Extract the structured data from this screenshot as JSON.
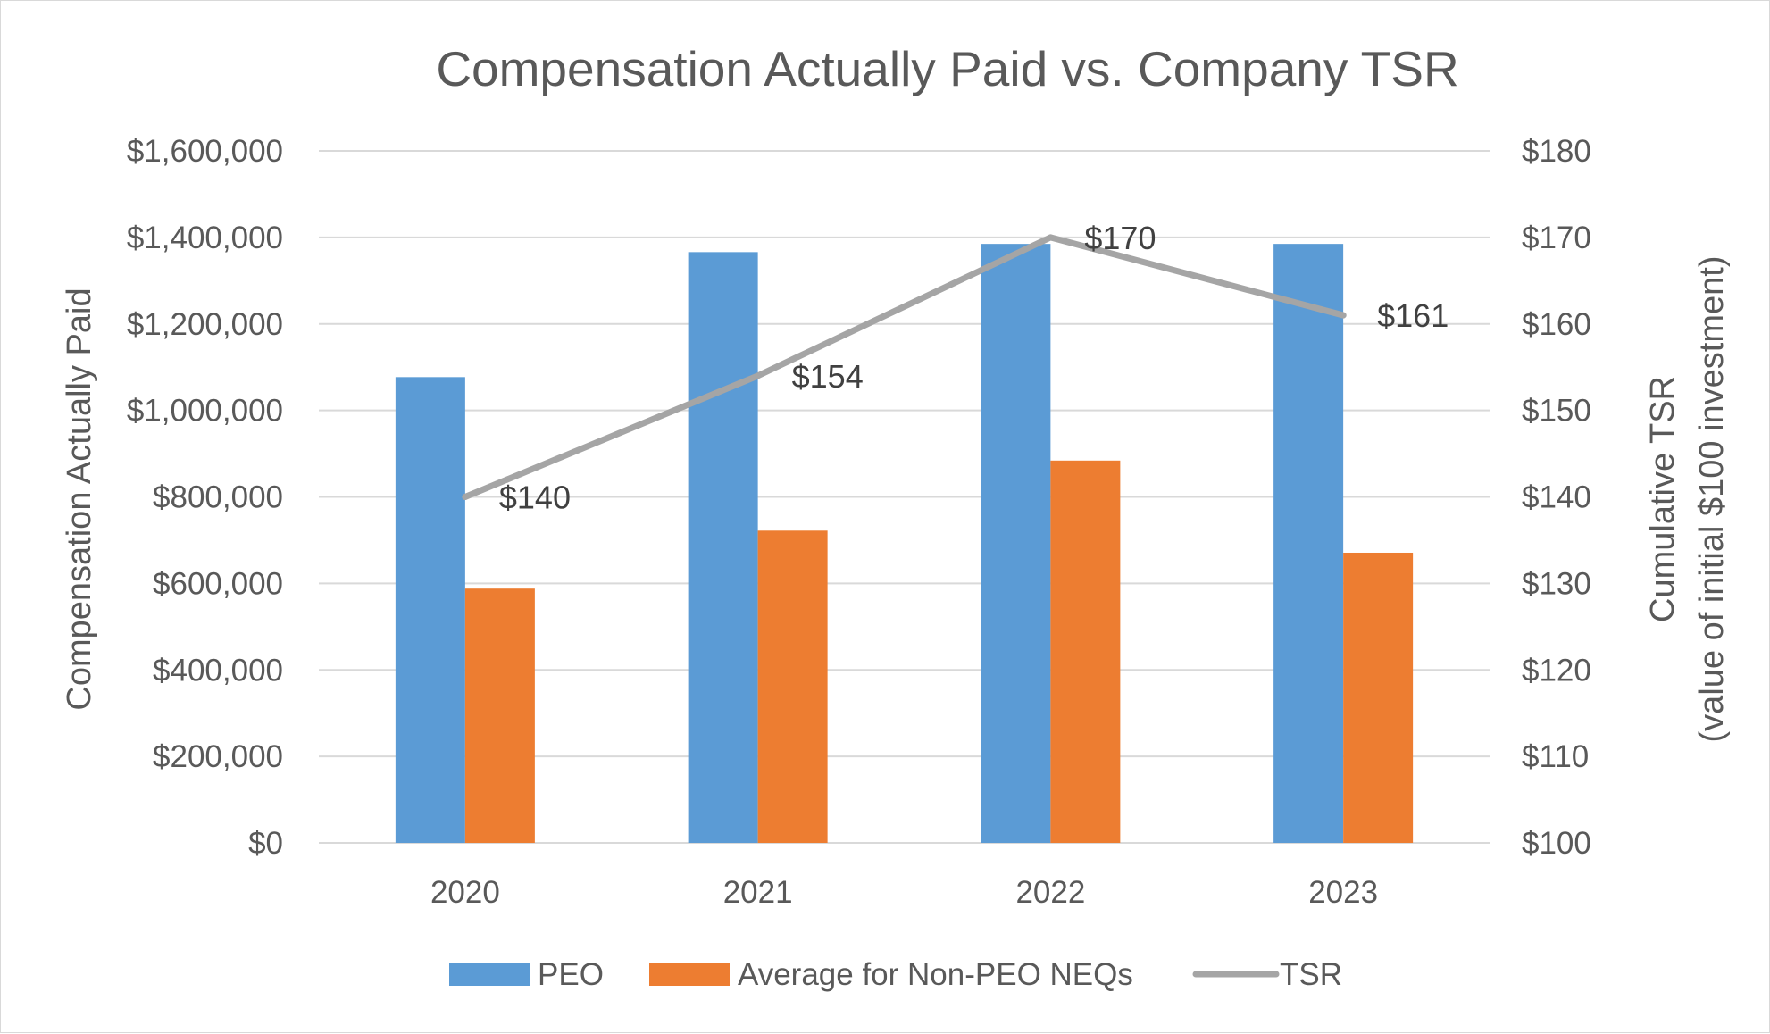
{
  "chart_data": {
    "type": "bar",
    "title": "Compensation Actually Paid vs. Company TSR",
    "categories": [
      "2020",
      "2021",
      "2022",
      "2023"
    ],
    "series": [
      {
        "name": "PEO",
        "type": "bar",
        "axis": "left",
        "color": "#5b9bd5",
        "values": [
          1077000,
          1366000,
          1385000,
          1385000
        ]
      },
      {
        "name": "Average for Non-PEO NEQs",
        "type": "bar",
        "axis": "left",
        "color": "#ed7d31",
        "values": [
          588000,
          722000,
          884000,
          671000
        ]
      },
      {
        "name": "TSR",
        "type": "line",
        "axis": "right",
        "color": "#a5a5a5",
        "values": [
          140,
          154,
          170,
          161
        ],
        "data_labels": [
          "$140",
          "$154",
          "$170",
          "$161"
        ]
      }
    ],
    "ylabel": "Compensation Actually Paid",
    "y2label": [
      "Cumulative TSR",
      "(value of initial $100 investment)"
    ],
    "ylim": [
      0,
      1600000
    ],
    "y2lim": [
      100,
      180
    ],
    "yticks": [
      "$0",
      "$200,000",
      "$400,000",
      "$600,000",
      "$800,000",
      "$1,000,000",
      "$1,200,000",
      "$1,400,000",
      "$1,600,000"
    ],
    "y2ticks": [
      "$100",
      "$110",
      "$120",
      "$130",
      "$140",
      "$150",
      "$160",
      "$170",
      "$180"
    ],
    "grid": true,
    "legend_position": "bottom",
    "legend": [
      {
        "label": "PEO",
        "kind": "box",
        "color": "#5b9bd5"
      },
      {
        "label": "Average for Non-PEO NEQs",
        "kind": "box",
        "color": "#ed7d31"
      },
      {
        "label": "TSR",
        "kind": "line",
        "color": "#a5a5a5"
      }
    ]
  }
}
